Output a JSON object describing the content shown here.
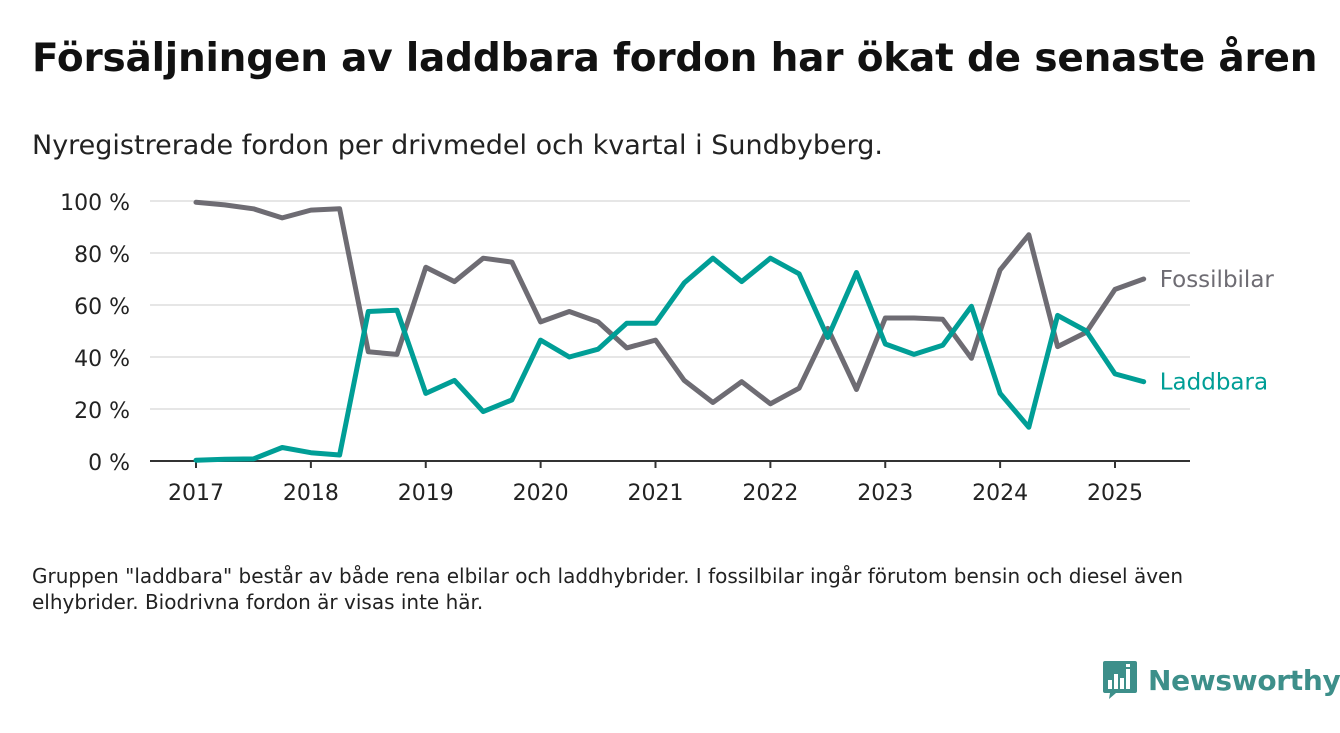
{
  "title": "Försäljningen av laddbara fordon har ökat de senaste åren",
  "subtitle": "Nyregistrerade fordon per drivmedel och kvartal i Sundbyberg.",
  "footnote": "Gruppen \"laddbara\" består av både rena elbilar och laddhybrider. I fossilbilar ingår förutom bensin och diesel även elhybrider. Biodrivna fordon är visas inte här.",
  "logo": {
    "text": "Newsworthy",
    "icon": "newsworthy-chart-bubble-icon",
    "color": "#3d8f8a"
  },
  "chart_data": {
    "type": "line",
    "x_start": 2017,
    "x_step": 0.25,
    "x_ticks": [
      "2017",
      "2018",
      "2019",
      "2020",
      "2021",
      "2022",
      "2023",
      "2024",
      "2025"
    ],
    "y_ticks": [
      "0 %",
      "20 %",
      "40 %",
      "60 %",
      "80 %",
      "100 %"
    ],
    "ylim": [
      0,
      100
    ],
    "grid": true,
    "legend": "direct labels at line ends",
    "series": [
      {
        "name": "Fossilbilar",
        "color": "#6e6c73",
        "values": [
          99.5,
          98.5,
          97,
          93.5,
          96.5,
          97,
          42,
          41,
          74.5,
          69,
          78,
          76.5,
          53.5,
          57.5,
          53.5,
          43.5,
          46.5,
          31,
          22.5,
          30.5,
          22,
          28,
          51,
          27.5,
          55,
          55,
          54.5,
          39.5,
          73.5,
          87,
          44,
          49.5,
          66,
          70
        ]
      },
      {
        "name": "Laddbara",
        "color": "#009e96",
        "values": [
          0.3,
          0.7,
          0.8,
          5.2,
          3.2,
          2.3,
          57.5,
          58,
          26,
          31,
          19,
          23.5,
          46.5,
          40,
          43,
          53,
          53,
          68.5,
          78,
          69,
          78,
          72,
          47.5,
          72.5,
          45,
          41,
          44.5,
          59.5,
          26,
          13,
          56,
          50,
          33.5,
          30.5
        ]
      }
    ]
  }
}
